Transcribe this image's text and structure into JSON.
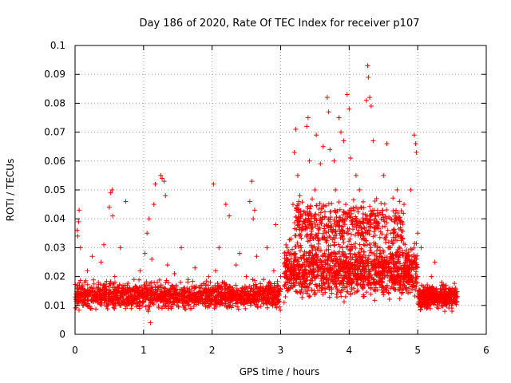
{
  "chart_data": {
    "type": "scatter",
    "title": "Day 186 of 2020, Rate Of TEC Index for receiver p107",
    "xlabel": "GPS time / hours",
    "ylabel": "ROTI / TECUs",
    "xlim": [
      0,
      6
    ],
    "ylim": [
      0,
      0.1
    ],
    "xticks": [
      "0",
      "1",
      "2",
      "3",
      "4",
      "5",
      "6"
    ],
    "yticks": [
      "0",
      "0.01",
      "0.02",
      "0.03",
      "0.04",
      "0.05",
      "0.06",
      "0.07",
      "0.08",
      "0.09",
      "0.1"
    ],
    "xtick_values": [
      0,
      1,
      2,
      3,
      4,
      5,
      6
    ],
    "ytick_values": [
      0,
      0.01,
      0.02,
      0.03,
      0.04,
      0.05,
      0.06,
      0.07,
      0.08,
      0.09,
      0.1
    ],
    "grid": true,
    "marker": "+",
    "color": "#ff0000",
    "series": [
      {
        "name": "p107",
        "points": [
          [
            0.02,
            0.012
          ],
          [
            0.03,
            0.036
          ],
          [
            0.04,
            0.034
          ],
          [
            0.05,
            0.039
          ],
          [
            0.06,
            0.043
          ],
          [
            0.08,
            0.03
          ],
          [
            0.1,
            0.016
          ],
          [
            0.12,
            0.01
          ],
          [
            0.15,
            0.014
          ],
          [
            0.18,
            0.022
          ],
          [
            0.22,
            0.009
          ],
          [
            0.25,
            0.027
          ],
          [
            0.3,
            0.012
          ],
          [
            0.34,
            0.018
          ],
          [
            0.38,
            0.025
          ],
          [
            0.42,
            0.031
          ],
          [
            0.45,
            0.015
          ],
          [
            0.5,
            0.044
          ],
          [
            0.52,
            0.049
          ],
          [
            0.54,
            0.05
          ],
          [
            0.55,
            0.041
          ],
          [
            0.58,
            0.02
          ],
          [
            0.62,
            0.011
          ],
          [
            0.66,
            0.03
          ],
          [
            0.7,
            0.017
          ],
          [
            0.74,
            0.046
          ],
          [
            0.78,
            0.013
          ],
          [
            0.82,
            0.009
          ],
          [
            0.86,
            0.019
          ],
          [
            0.9,
            0.012
          ],
          [
            0.95,
            0.022
          ],
          [
            1.0,
            0.014
          ],
          [
            1.02,
            0.028
          ],
          [
            1.05,
            0.035
          ],
          [
            1.08,
            0.04
          ],
          [
            1.1,
            0.004
          ],
          [
            1.12,
            0.026
          ],
          [
            1.15,
            0.045
          ],
          [
            1.17,
            0.052
          ],
          [
            1.2,
            0.018
          ],
          [
            1.25,
            0.055
          ],
          [
            1.27,
            0.054
          ],
          [
            1.3,
            0.053
          ],
          [
            1.32,
            0.048
          ],
          [
            1.35,
            0.024
          ],
          [
            1.4,
            0.016
          ],
          [
            1.45,
            0.021
          ],
          [
            1.5,
            0.011
          ],
          [
            1.55,
            0.03
          ],
          [
            1.6,
            0.013
          ],
          [
            1.65,
            0.019
          ],
          [
            1.7,
            0.009
          ],
          [
            1.75,
            0.023
          ],
          [
            1.8,
            0.014
          ],
          [
            1.85,
            0.017
          ],
          [
            1.9,
            0.012
          ],
          [
            1.95,
            0.02
          ],
          [
            2.0,
            0.015
          ],
          [
            2.02,
            0.052
          ],
          [
            2.05,
            0.022
          ],
          [
            2.1,
            0.03
          ],
          [
            2.15,
            0.018
          ],
          [
            2.2,
            0.045
          ],
          [
            2.25,
            0.041
          ],
          [
            2.3,
            0.014
          ],
          [
            2.35,
            0.024
          ],
          [
            2.4,
            0.028
          ],
          [
            2.45,
            0.012
          ],
          [
            2.5,
            0.02
          ],
          [
            2.55,
            0.046
          ],
          [
            2.58,
            0.053
          ],
          [
            2.6,
            0.04
          ],
          [
            2.62,
            0.043
          ],
          [
            2.65,
            0.027
          ],
          [
            2.7,
            0.016
          ],
          [
            2.75,
            0.019
          ],
          [
            2.8,
            0.03
          ],
          [
            2.85,
            0.014
          ],
          [
            2.9,
            0.022
          ],
          [
            2.93,
            0.038
          ],
          [
            2.95,
            0.017
          ],
          [
            3.0,
            0.02
          ],
          [
            3.05,
            0.011
          ],
          [
            3.1,
            0.015
          ],
          [
            3.15,
            0.033
          ],
          [
            3.18,
            0.045
          ],
          [
            3.2,
            0.063
          ],
          [
            3.22,
            0.071
          ],
          [
            3.25,
            0.055
          ],
          [
            3.28,
            0.048
          ],
          [
            3.3,
            0.03
          ],
          [
            3.35,
            0.022
          ],
          [
            3.38,
            0.072
          ],
          [
            3.4,
            0.075
          ],
          [
            3.42,
            0.06
          ],
          [
            3.45,
            0.041
          ],
          [
            3.5,
            0.05
          ],
          [
            3.52,
            0.069
          ],
          [
            3.55,
            0.035
          ],
          [
            3.58,
            0.059
          ],
          [
            3.6,
            0.044
          ],
          [
            3.62,
            0.065
          ],
          [
            3.65,
            0.027
          ],
          [
            3.68,
            0.082
          ],
          [
            3.7,
            0.077
          ],
          [
            3.72,
            0.064
          ],
          [
            3.75,
            0.019
          ],
          [
            3.78,
            0.06
          ],
          [
            3.8,
            0.05
          ],
          [
            3.85,
            0.075
          ],
          [
            3.88,
            0.07
          ],
          [
            3.9,
            0.03
          ],
          [
            3.92,
            0.067
          ],
          [
            3.95,
            0.045
          ],
          [
            3.97,
            0.083
          ],
          [
            4.0,
            0.078
          ],
          [
            4.02,
            0.061
          ],
          [
            4.05,
            0.04
          ],
          [
            4.08,
            0.025
          ],
          [
            4.1,
            0.055
          ],
          [
            4.15,
            0.05
          ],
          [
            4.2,
            0.035
          ],
          [
            4.25,
            0.081
          ],
          [
            4.27,
            0.093
          ],
          [
            4.28,
            0.089
          ],
          [
            4.3,
            0.082
          ],
          [
            4.32,
            0.079
          ],
          [
            4.35,
            0.067
          ],
          [
            4.4,
            0.047
          ],
          [
            4.45,
            0.03
          ],
          [
            4.5,
            0.055
          ],
          [
            4.55,
            0.066
          ],
          [
            4.6,
            0.04
          ],
          [
            4.65,
            0.022
          ],
          [
            4.7,
            0.05
          ],
          [
            4.75,
            0.034
          ],
          [
            4.8,
            0.045
          ],
          [
            4.85,
            0.027
          ],
          [
            4.9,
            0.05
          ],
          [
            4.95,
            0.069
          ],
          [
            4.97,
            0.066
          ],
          [
            4.98,
            0.063
          ],
          [
            5.0,
            0.035
          ],
          [
            5.05,
            0.03
          ],
          [
            5.1,
            0.015
          ],
          [
            5.15,
            0.012
          ],
          [
            5.2,
            0.02
          ],
          [
            5.25,
            0.025
          ],
          [
            5.3,
            0.009
          ],
          [
            5.35,
            0.018
          ],
          [
            5.4,
            0.011
          ],
          [
            5.45,
            0.014
          ],
          [
            5.5,
            0.008
          ],
          [
            5.55,
            0.016
          ]
        ]
      }
    ],
    "density": [
      {
        "x0": 0.0,
        "x1": 3.0,
        "yBase": 0.0135,
        "spread": 0.006,
        "count": 1500
      },
      {
        "x0": 3.05,
        "x1": 5.0,
        "yBase": 0.022,
        "spread": 0.012,
        "count": 1300
      },
      {
        "x0": 3.2,
        "x1": 4.8,
        "yBase": 0.038,
        "spread": 0.012,
        "count": 500
      },
      {
        "x0": 5.0,
        "x1": 5.58,
        "yBase": 0.013,
        "spread": 0.0055,
        "count": 450
      }
    ]
  }
}
